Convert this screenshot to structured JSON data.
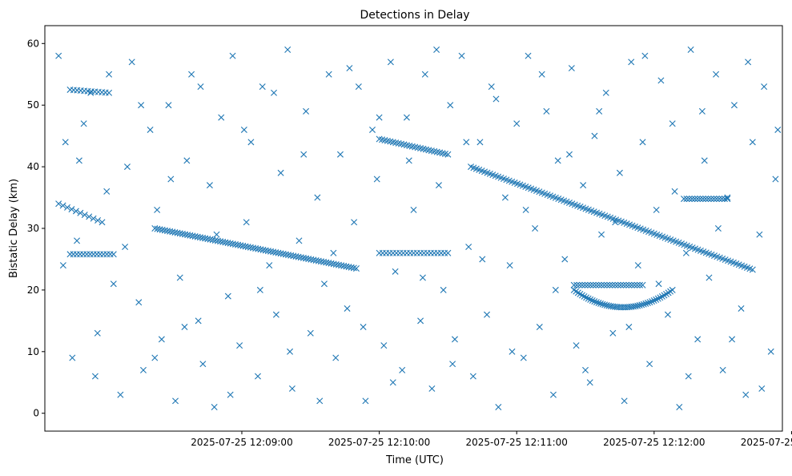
{
  "chart_data": {
    "type": "scatter",
    "title": "Detections in Delay",
    "xlabel": "Time (UTC)",
    "ylabel": "Bistatic Delay (km)",
    "marker": "x",
    "color": "#1f77b4",
    "xlim": [
      -26,
      296
    ],
    "x_unit": "seconds after 2025-07-25 12:08:00 UTC",
    "ylim": [
      -2.9,
      62.9
    ],
    "grid": false,
    "legend": "none",
    "x_ticks": [
      {
        "value": 60,
        "label": "2025-07-25 12:09:00"
      },
      {
        "value": 120,
        "label": "2025-07-25 12:10:00"
      },
      {
        "value": 180,
        "label": "2025-07-25 12:11:00"
      },
      {
        "value": 240,
        "label": "2025-07-25 12:12:00"
      },
      {
        "value": 300,
        "label": "2025-07-25 12:13:00"
      }
    ],
    "y_ticks": [
      {
        "value": 0,
        "label": "0"
      },
      {
        "value": 10,
        "label": "10"
      },
      {
        "value": 20,
        "label": "20"
      },
      {
        "value": 30,
        "label": "30"
      },
      {
        "value": 40,
        "label": "40"
      },
      {
        "value": 50,
        "label": "50"
      },
      {
        "value": 60,
        "label": "60"
      }
    ],
    "tracks": [
      {
        "name": "descending-track-A",
        "x_start": -20,
        "x_end": -1,
        "y_start": 34,
        "y_end": 31,
        "step": 2
      },
      {
        "name": "descending-track-B",
        "x_start": 22,
        "x_end": 110,
        "y_start": 30,
        "y_end": 23.5,
        "step": 1.1
      },
      {
        "name": "descending-track-C",
        "x_start": 120,
        "x_end": 150,
        "y_start": 44.5,
        "y_end": 42,
        "step": 1.2
      },
      {
        "name": "descending-track-D",
        "x_start": 160,
        "x_end": 283,
        "y_start": 40,
        "y_end": 23.3,
        "step": 1.2
      },
      {
        "name": "arc-track-E",
        "x_start": 205,
        "x_end": 248,
        "y_start": 20,
        "y_end": 20,
        "y_min": 17.2,
        "step": 0.9
      },
      {
        "name": "flat-track-F",
        "x_start": 205,
        "x_end": 235,
        "y_start": 20.8,
        "y_end": 20.8,
        "step": 1.2
      },
      {
        "name": "flat-track-G",
        "x_start": 253,
        "x_end": 272,
        "y_start": 34.8,
        "y_end": 34.8,
        "step": 1.2
      },
      {
        "name": "flat-track-H",
        "x_start": -15,
        "x_end": 4,
        "y_start": 25.8,
        "y_end": 25.8,
        "step": 1.5
      },
      {
        "name": "flat-track-I",
        "x_start": 120,
        "x_end": 150,
        "y_start": 26,
        "y_end": 26,
        "step": 1.5
      },
      {
        "name": "flat-track-J",
        "x_start": -15,
        "x_end": 2,
        "y_start": 52.5,
        "y_end": 52,
        "step": 1.5
      }
    ],
    "background_points": [
      [
        -20,
        58
      ],
      [
        -17,
        44
      ],
      [
        -14,
        9
      ],
      [
        -12,
        28
      ],
      [
        -9,
        47
      ],
      [
        -6,
        52
      ],
      [
        -3,
        13
      ],
      [
        1,
        36
      ],
      [
        4,
        21
      ],
      [
        7,
        3
      ],
      [
        10,
        40
      ],
      [
        12,
        57
      ],
      [
        15,
        18
      ],
      [
        17,
        7
      ],
      [
        20,
        46
      ],
      [
        23,
        33
      ],
      [
        25,
        12
      ],
      [
        28,
        50
      ],
      [
        31,
        2
      ],
      [
        33,
        22
      ],
      [
        36,
        41
      ],
      [
        38,
        55
      ],
      [
        41,
        15
      ],
      [
        43,
        8
      ],
      [
        46,
        37
      ],
      [
        48,
        1
      ],
      [
        51,
        48
      ],
      [
        54,
        19
      ],
      [
        56,
        58
      ],
      [
        59,
        11
      ],
      [
        62,
        31
      ],
      [
        64,
        44
      ],
      [
        67,
        6
      ],
      [
        69,
        53
      ],
      [
        72,
        24
      ],
      [
        75,
        16
      ],
      [
        77,
        39
      ],
      [
        80,
        59
      ],
      [
        82,
        4
      ],
      [
        85,
        28
      ],
      [
        88,
        49
      ],
      [
        90,
        13
      ],
      [
        93,
        35
      ],
      [
        96,
        21
      ],
      [
        98,
        55
      ],
      [
        101,
        9
      ],
      [
        103,
        42
      ],
      [
        106,
        17
      ],
      [
        109,
        31
      ],
      [
        111,
        53
      ],
      [
        114,
        2
      ],
      [
        117,
        46
      ],
      [
        119,
        38
      ],
      [
        122,
        11
      ],
      [
        125,
        57
      ],
      [
        127,
        23
      ],
      [
        130,
        7
      ],
      [
        132,
        48
      ],
      [
        135,
        33
      ],
      [
        138,
        15
      ],
      [
        140,
        55
      ],
      [
        143,
        4
      ],
      [
        146,
        37
      ],
      [
        148,
        20
      ],
      [
        151,
        50
      ],
      [
        153,
        12
      ],
      [
        156,
        58
      ],
      [
        159,
        27
      ],
      [
        161,
        6
      ],
      [
        164,
        44
      ],
      [
        167,
        16
      ],
      [
        169,
        53
      ],
      [
        172,
        1
      ],
      [
        175,
        35
      ],
      [
        177,
        24
      ],
      [
        180,
        47
      ],
      [
        183,
        9
      ],
      [
        185,
        58
      ],
      [
        188,
        30
      ],
      [
        190,
        14
      ],
      [
        193,
        49
      ],
      [
        196,
        3
      ],
      [
        198,
        41
      ],
      [
        201,
        25
      ],
      [
        204,
        56
      ],
      [
        206,
        11
      ],
      [
        209,
        37
      ],
      [
        212,
        5
      ],
      [
        214,
        45
      ],
      [
        217,
        29
      ],
      [
        219,
        52
      ],
      [
        222,
        13
      ],
      [
        225,
        39
      ],
      [
        227,
        2
      ],
      [
        230,
        57
      ],
      [
        233,
        24
      ],
      [
        235,
        44
      ],
      [
        238,
        8
      ],
      [
        241,
        33
      ],
      [
        243,
        54
      ],
      [
        246,
        16
      ],
      [
        248,
        47
      ],
      [
        251,
        1
      ],
      [
        254,
        26
      ],
      [
        256,
        59
      ],
      [
        259,
        12
      ],
      [
        262,
        41
      ],
      [
        264,
        22
      ],
      [
        267,
        55
      ],
      [
        270,
        7
      ],
      [
        272,
        35
      ],
      [
        275,
        50
      ],
      [
        278,
        17
      ],
      [
        280,
        3
      ],
      [
        283,
        44
      ],
      [
        286,
        29
      ],
      [
        288,
        53
      ],
      [
        291,
        10
      ],
      [
        293,
        38
      ],
      [
        -18,
        24
      ],
      [
        -11,
        41
      ],
      [
        -4,
        6
      ],
      [
        2,
        55
      ],
      [
        9,
        27
      ],
      [
        16,
        50
      ],
      [
        22,
        9
      ],
      [
        29,
        38
      ],
      [
        35,
        14
      ],
      [
        42,
        53
      ],
      [
        49,
        29
      ],
      [
        55,
        3
      ],
      [
        61,
        46
      ],
      [
        68,
        20
      ],
      [
        74,
        52
      ],
      [
        81,
        10
      ],
      [
        87,
        42
      ],
      [
        94,
        2
      ],
      [
        100,
        26
      ],
      [
        107,
        56
      ],
      [
        113,
        14
      ],
      [
        120,
        48
      ],
      [
        126,
        5
      ],
      [
        133,
        41
      ],
      [
        139,
        22
      ],
      [
        145,
        59
      ],
      [
        152,
        8
      ],
      [
        158,
        44
      ],
      [
        165,
        25
      ],
      [
        171,
        51
      ],
      [
        178,
        10
      ],
      [
        184,
        33
      ],
      [
        191,
        55
      ],
      [
        197,
        20
      ],
      [
        203,
        42
      ],
      [
        210,
        7
      ],
      [
        216,
        49
      ],
      [
        223,
        31
      ],
      [
        229,
        14
      ],
      [
        236,
        58
      ],
      [
        242,
        21
      ],
      [
        249,
        36
      ],
      [
        255,
        6
      ],
      [
        261,
        49
      ],
      [
        268,
        30
      ],
      [
        274,
        12
      ],
      [
        281,
        57
      ],
      [
        287,
        4
      ],
      [
        294,
        46
      ]
    ]
  }
}
